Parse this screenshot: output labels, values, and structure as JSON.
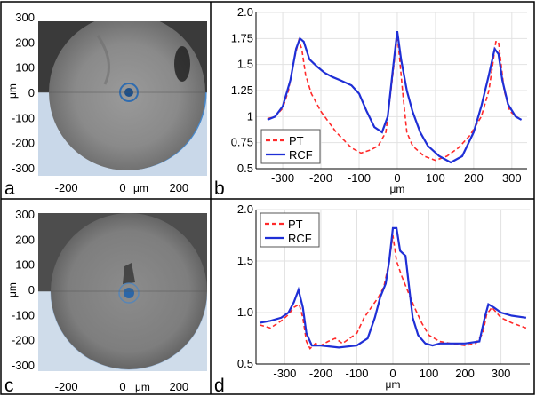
{
  "panels": {
    "a": {
      "letter": "a",
      "y_ticks": [
        "300",
        "200",
        "100",
        "0",
        "-100",
        "-200",
        "-300"
      ],
      "x_ticks": [
        "-200",
        "0",
        "200"
      ],
      "x_unit": "μm",
      "y_unit": "μm"
    },
    "c": {
      "letter": "c",
      "y_ticks": [
        "300",
        "200",
        "100",
        "0",
        "-100",
        "-200",
        "-300"
      ],
      "x_ticks": [
        "-200",
        "0",
        "200"
      ],
      "x_unit": "μm",
      "y_unit": "μm"
    },
    "b": {
      "letter": "b"
    },
    "d": {
      "letter": "d"
    }
  },
  "colors": {
    "pt": "#ff2a2a",
    "rcf": "#1f2fd6",
    "image_ring": "#2b6fbf",
    "image_bg_blue": "#c5d6e8"
  },
  "chart_data": [
    {
      "panel": "b",
      "type": "line",
      "xlabel": "μm",
      "ylabel": "",
      "xlim": [
        -370,
        340
      ],
      "ylim": [
        0.5,
        2.0
      ],
      "x_ticks": [
        -300,
        -200,
        -100,
        0,
        100,
        200,
        300
      ],
      "y_ticks": [
        "0.5",
        "0.75",
        "1",
        "1.25",
        "1.5",
        "1.75",
        "2.0"
      ],
      "legend": "lower-left",
      "series": [
        {
          "name": "PT",
          "style": "dashed",
          "x": [
            -340,
            -320,
            -300,
            -285,
            -270,
            -258,
            -250,
            -240,
            -225,
            -200,
            -160,
            -120,
            -95,
            -70,
            -50,
            -30,
            -15,
            -5,
            0,
            5,
            15,
            25,
            40,
            70,
            100,
            130,
            160,
            190,
            220,
            240,
            250,
            258,
            265,
            272,
            280,
            295,
            320
          ],
          "y": [
            0.98,
            1.0,
            1.08,
            1.25,
            1.55,
            1.73,
            1.65,
            1.4,
            1.22,
            1.05,
            0.85,
            0.7,
            0.65,
            0.68,
            0.72,
            0.85,
            1.3,
            1.62,
            1.78,
            1.6,
            1.2,
            0.85,
            0.72,
            0.62,
            0.58,
            0.62,
            0.7,
            0.82,
            1.0,
            1.25,
            1.5,
            1.72,
            1.72,
            1.5,
            1.25,
            1.05,
            0.98
          ]
        },
        {
          "name": "RCF",
          "style": "solid",
          "x": [
            -340,
            -320,
            -300,
            -280,
            -265,
            -255,
            -245,
            -230,
            -210,
            -190,
            -170,
            -150,
            -120,
            -100,
            -80,
            -60,
            -40,
            -25,
            -10,
            0,
            10,
            25,
            40,
            60,
            80,
            110,
            140,
            170,
            200,
            220,
            240,
            255,
            265,
            275,
            290,
            310,
            325
          ],
          "y": [
            0.97,
            1.0,
            1.1,
            1.35,
            1.65,
            1.75,
            1.72,
            1.55,
            1.48,
            1.42,
            1.38,
            1.35,
            1.3,
            1.22,
            1.05,
            0.9,
            0.85,
            1.0,
            1.5,
            1.82,
            1.55,
            1.25,
            1.05,
            0.85,
            0.72,
            0.62,
            0.56,
            0.62,
            0.85,
            1.1,
            1.4,
            1.65,
            1.6,
            1.35,
            1.12,
            1.0,
            0.97
          ]
        }
      ]
    },
    {
      "panel": "d",
      "type": "line",
      "xlabel": "μm",
      "ylabel": "",
      "xlim": [
        -380,
        380
      ],
      "ylim": [
        0.5,
        2.0
      ],
      "x_ticks": [
        -300,
        -200,
        -100,
        0,
        100,
        200,
        300
      ],
      "y_ticks": [
        "0.5",
        "1.0",
        "1.5",
        "2.0"
      ],
      "legend": "upper-left",
      "series": [
        {
          "name": "PT",
          "style": "dashed",
          "x": [
            -370,
            -340,
            -310,
            -290,
            -275,
            -260,
            -250,
            -240,
            -230,
            -215,
            -200,
            -180,
            -160,
            -140,
            -120,
            -100,
            -80,
            -60,
            -40,
            -25,
            -10,
            0,
            10,
            25,
            40,
            60,
            80,
            100,
            130,
            160,
            200,
            230,
            250,
            260,
            275,
            300,
            330,
            370
          ],
          "y": [
            0.88,
            0.85,
            0.92,
            0.98,
            1.05,
            1.08,
            0.95,
            0.72,
            0.65,
            0.7,
            0.68,
            0.72,
            0.75,
            0.7,
            0.75,
            0.8,
            0.95,
            1.05,
            1.15,
            1.25,
            1.5,
            1.75,
            1.5,
            1.35,
            1.22,
            1.05,
            0.9,
            0.78,
            0.72,
            0.7,
            0.68,
            0.7,
            0.8,
            0.98,
            1.05,
            0.95,
            0.9,
            0.85
          ]
        },
        {
          "name": "RCF",
          "style": "solid",
          "x": [
            -370,
            -340,
            -310,
            -290,
            -275,
            -262,
            -250,
            -240,
            -225,
            -200,
            -150,
            -100,
            -70,
            -50,
            -35,
            -20,
            -10,
            0,
            10,
            20,
            35,
            45,
            55,
            70,
            90,
            110,
            130,
            160,
            200,
            240,
            255,
            265,
            280,
            300,
            330,
            370
          ],
          "y": [
            0.9,
            0.92,
            0.95,
            1.0,
            1.1,
            1.22,
            1.05,
            0.8,
            0.68,
            0.68,
            0.66,
            0.68,
            0.75,
            0.95,
            1.15,
            1.28,
            1.5,
            1.82,
            1.82,
            1.6,
            1.55,
            1.25,
            0.95,
            0.78,
            0.7,
            0.68,
            0.7,
            0.7,
            0.7,
            0.72,
            0.95,
            1.08,
            1.05,
            1.0,
            0.97,
            0.95
          ]
        }
      ]
    }
  ]
}
